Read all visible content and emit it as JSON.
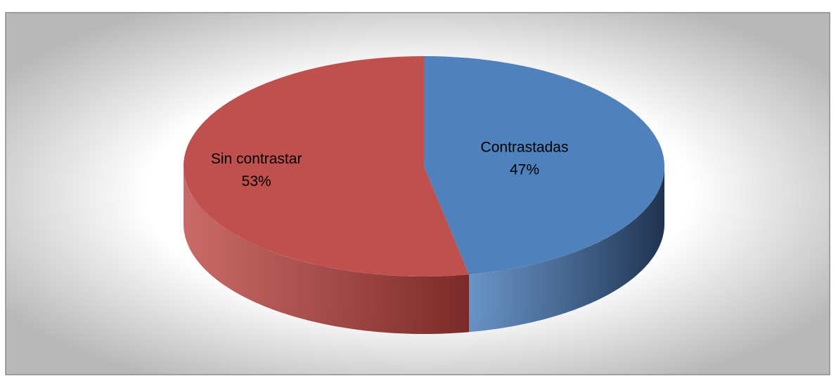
{
  "chart_data": {
    "type": "pie",
    "three_d": true,
    "categories": [
      "Contrastadas",
      "Sin contrastar"
    ],
    "values": [
      47,
      53
    ],
    "value_labels": [
      "47%",
      "53%"
    ],
    "colors": [
      "#4f81bd",
      "#c0504d"
    ],
    "side_colors": [
      "#1f3350",
      "#7a2a28"
    ]
  }
}
